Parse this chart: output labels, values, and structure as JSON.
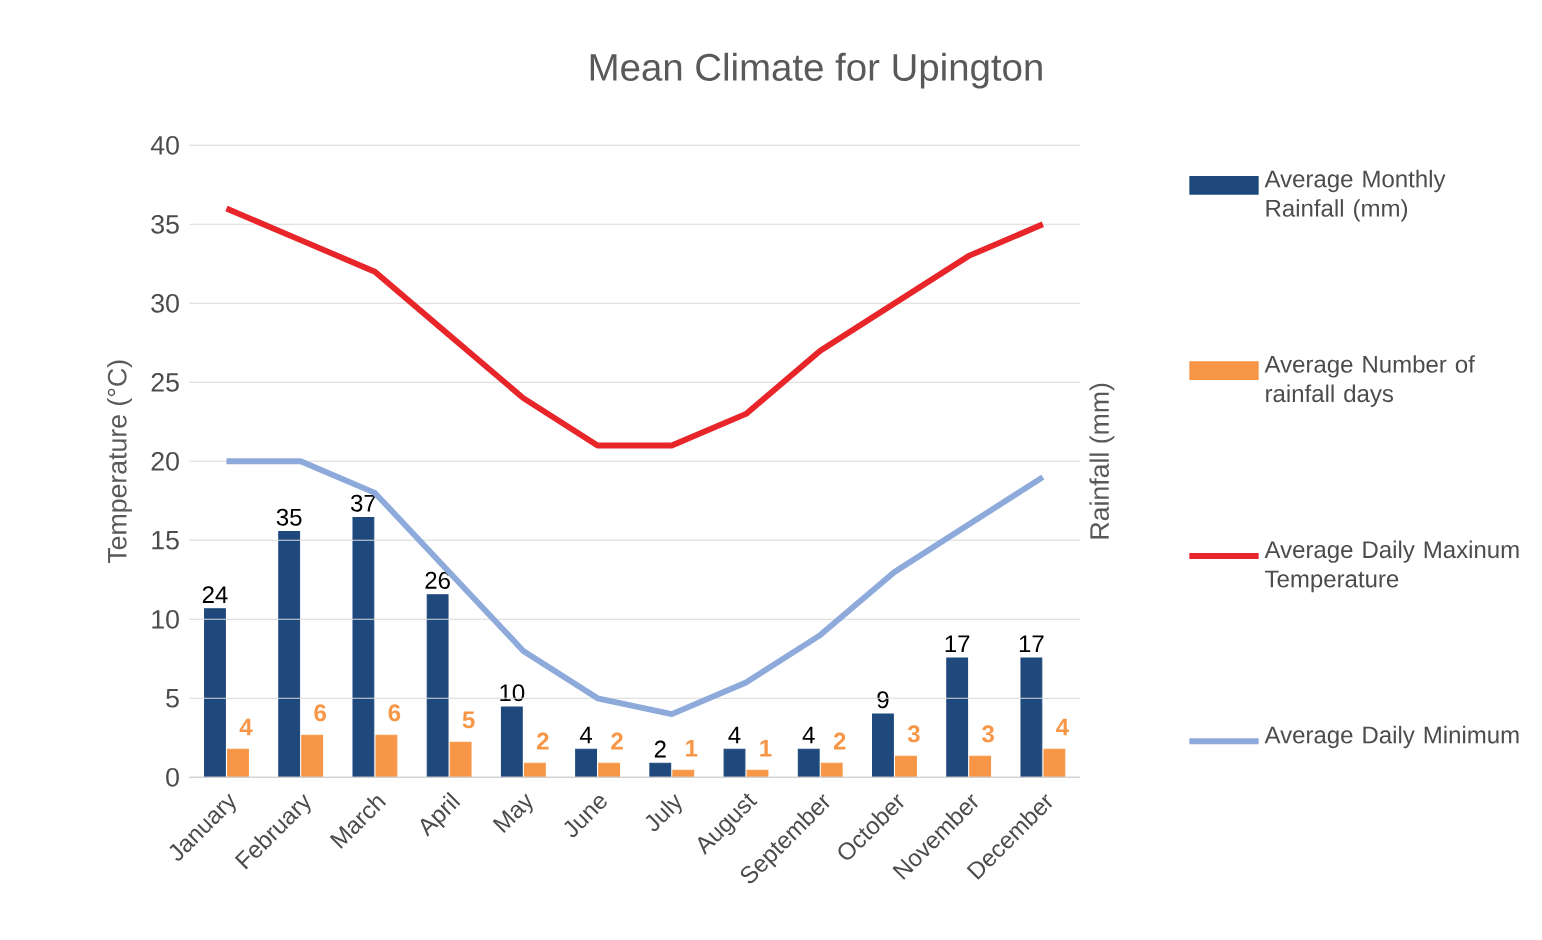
{
  "chart_data": {
    "type": "bar",
    "title": "Mean Climate for Upington",
    "ylabel": "Temperature (°C)",
    "y2label": "Rainfall (mm)",
    "categories": [
      "January",
      "February",
      "March",
      "April",
      "May",
      "June",
      "July",
      "August",
      "September",
      "October",
      "November",
      "December"
    ],
    "series": [
      {
        "name": "Average Monthly Rainfall (mm)",
        "color": "#1f497d",
        "axis": "y2",
        "values": [
          24,
          35,
          37,
          26,
          10,
          4,
          2,
          4,
          4,
          9,
          17,
          17
        ],
        "value_labels": [
          "24",
          "35",
          "37",
          "26",
          "10",
          "4",
          "2",
          "4",
          "4",
          "9",
          "17",
          "17"
        ]
      },
      {
        "name": "Average Number of rainfall days",
        "color": "#f79646",
        "axis": "y2",
        "values": [
          4,
          6,
          6,
          5,
          2,
          2,
          1,
          1,
          2,
          3,
          3,
          4
        ],
        "value_labels": [
          "4",
          "6",
          "6",
          "5",
          "2",
          "2",
          "1",
          "1",
          "2",
          "3",
          "3",
          "4"
        ]
      },
      {
        "name": "Average Daily Maxinum Temperature",
        "type": "line",
        "color": "#e8262a",
        "values": [
          36,
          34,
          32,
          28,
          24,
          21,
          21,
          23,
          27,
          30,
          33,
          35
        ]
      },
      {
        "name": "Average Daily Minimum",
        "type": "line",
        "color": "#8eaadb",
        "values": [
          20,
          20,
          18,
          13,
          8,
          5,
          4,
          6,
          9,
          13,
          16,
          19
        ]
      }
    ],
    "ylim": [
      0,
      40
    ],
    "yticks": [
      0,
      5,
      10,
      15,
      20,
      25,
      30,
      35,
      40
    ],
    "y2lim": [
      0,
      90
    ],
    "grid": "y",
    "legend": "right"
  }
}
